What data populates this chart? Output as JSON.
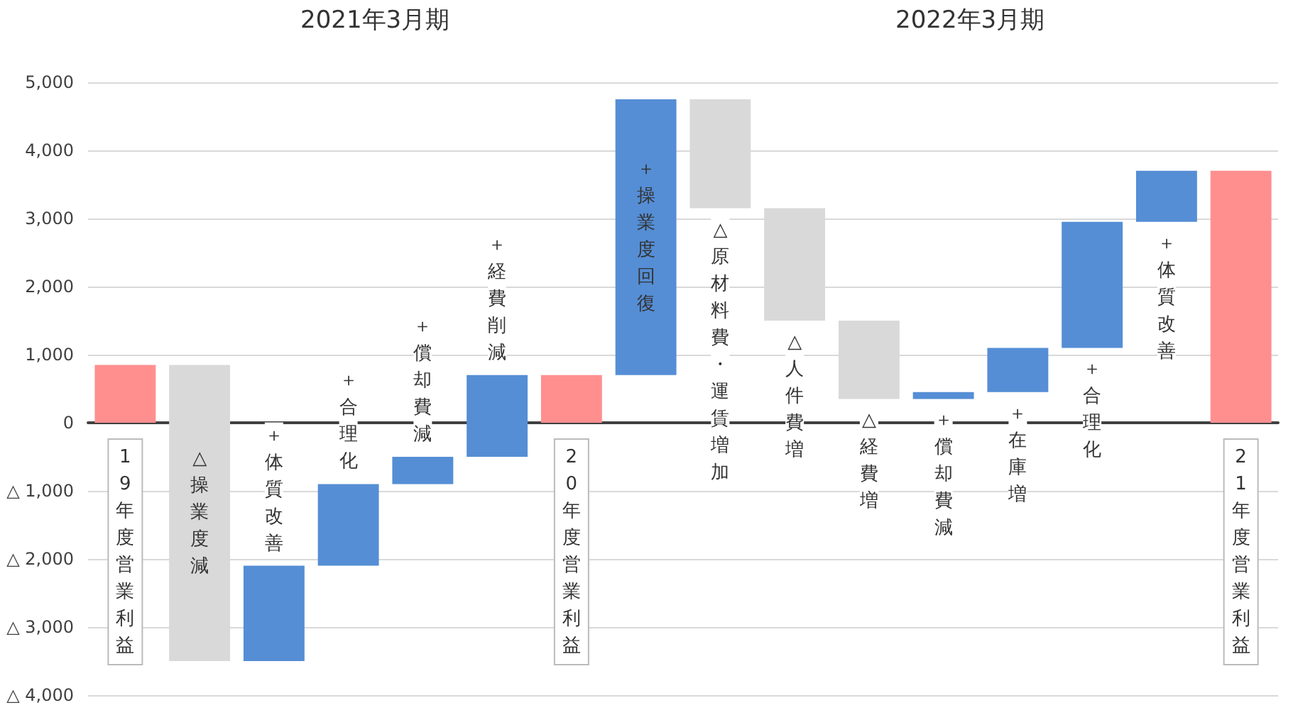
{
  "chart_data": {
    "type": "bar",
    "annotations": [
      "2021年3月期",
      "2022年3月期"
    ],
    "categories": [
      "19年度営業利益",
      "△操業度減",
      "＋体質改善",
      "＋合理化",
      "＋償却費減",
      "＋経費削減",
      "20年度営業利益",
      "＋操業度回復",
      "△原材料費・運賃増加",
      "△人件費増",
      "△経費増",
      "＋償却費減",
      "＋在庫増",
      "＋合理化",
      "＋体質改善",
      "21年度営業利益"
    ],
    "base": [
      0,
      850,
      -3500,
      -2100,
      -900,
      -500,
      0,
      700,
      4750,
      3150,
      1500,
      350,
      450,
      1100,
      2950,
      0
    ],
    "values": [
      850,
      -4350,
      1400,
      1200,
      400,
      1200,
      700,
      4050,
      -1600,
      -1650,
      -1150,
      100,
      650,
      1850,
      750,
      3700
    ],
    "colors": [
      "#ff8f8f",
      "#d9d9d9",
      "#558ed5",
      "#558ed5",
      "#558ed5",
      "#558ed5",
      "#ff8f8f",
      "#558ed5",
      "#d9d9d9",
      "#d9d9d9",
      "#d9d9d9",
      "#558ed5",
      "#558ed5",
      "#558ed5",
      "#558ed5",
      "#ff8f8f"
    ],
    "ylim": [
      -4000,
      5000
    ],
    "yticks": [
      {
        "value": -4000,
        "label": "△ 4,000"
      },
      {
        "value": -3000,
        "label": "△ 3,000"
      },
      {
        "value": -2000,
        "label": "△ 2,000"
      },
      {
        "value": -1000,
        "label": "△ 1,000"
      },
      0,
      {
        "value": 1000,
        "label": "1,000"
      },
      {
        "value": 2000,
        "label": "2,000"
      },
      {
        "value": 3000,
        "label": "3,000"
      },
      {
        "value": 4000,
        "label": "4,000"
      },
      {
        "value": 5000,
        "label": "5,000"
      }
    ],
    "grid": "y"
  }
}
